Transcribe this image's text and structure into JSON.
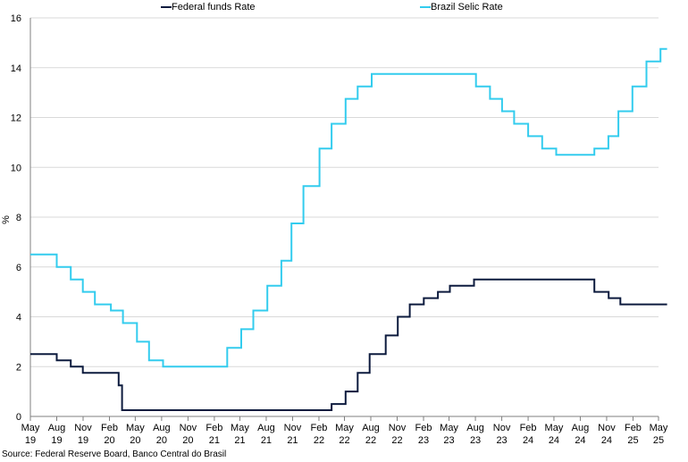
{
  "chart_data": {
    "type": "line",
    "title": "",
    "xlabel": "",
    "ylabel": "%",
    "ylim": [
      0,
      16
    ],
    "yticks": [
      0,
      2,
      4,
      6,
      8,
      10,
      12,
      14,
      16
    ],
    "xlim": [
      "2019-05",
      "2025-05"
    ],
    "xtick_labels": [
      {
        "month": "May",
        "year": "19"
      },
      {
        "month": "Aug",
        "year": "19"
      },
      {
        "month": "Nov",
        "year": "19"
      },
      {
        "month": "Feb",
        "year": "20"
      },
      {
        "month": "May",
        "year": "20"
      },
      {
        "month": "Aug",
        "year": "20"
      },
      {
        "month": "Nov",
        "year": "20"
      },
      {
        "month": "Feb",
        "year": "21"
      },
      {
        "month": "May",
        "year": "21"
      },
      {
        "month": "Aug",
        "year": "21"
      },
      {
        "month": "Nov",
        "year": "21"
      },
      {
        "month": "Feb",
        "year": "22"
      },
      {
        "month": "May",
        "year": "22"
      },
      {
        "month": "Aug",
        "year": "22"
      },
      {
        "month": "Nov",
        "year": "22"
      },
      {
        "month": "Feb",
        "year": "23"
      },
      {
        "month": "May",
        "year": "23"
      },
      {
        "month": "Aug",
        "year": "23"
      },
      {
        "month": "Nov",
        "year": "23"
      },
      {
        "month": "Feb",
        "year": "24"
      },
      {
        "month": "May",
        "year": "24"
      },
      {
        "month": "Aug",
        "year": "24"
      },
      {
        "month": "Nov",
        "year": "24"
      },
      {
        "month": "Feb",
        "year": "25"
      },
      {
        "month": "May",
        "year": "25"
      }
    ],
    "grid": true,
    "legend_position": "top",
    "series": [
      {
        "name": "Federal funds Rate",
        "color": "#0d1b3e",
        "step": true,
        "points": [
          [
            "2019-05-01",
            2.5
          ],
          [
            "2019-08-01",
            2.25
          ],
          [
            "2019-09-19",
            2.0
          ],
          [
            "2019-10-31",
            1.75
          ],
          [
            "2020-03-04",
            1.25
          ],
          [
            "2020-03-16",
            0.25
          ],
          [
            "2022-03-17",
            0.5
          ],
          [
            "2022-05-05",
            1.0
          ],
          [
            "2022-06-16",
            1.75
          ],
          [
            "2022-07-28",
            2.5
          ],
          [
            "2022-09-22",
            3.25
          ],
          [
            "2022-11-03",
            4.0
          ],
          [
            "2022-12-15",
            4.5
          ],
          [
            "2023-02-02",
            4.75
          ],
          [
            "2023-03-23",
            5.0
          ],
          [
            "2023-05-04",
            5.25
          ],
          [
            "2023-07-27",
            5.5
          ],
          [
            "2024-09-19",
            5.0
          ],
          [
            "2024-11-08",
            4.75
          ],
          [
            "2024-12-19",
            4.5
          ],
          [
            "2025-05-31",
            4.5
          ]
        ]
      },
      {
        "name": "Brazil Selic Rate",
        "color": "#33ccee",
        "step": true,
        "points": [
          [
            "2019-05-01",
            6.5
          ],
          [
            "2019-08-01",
            6.0
          ],
          [
            "2019-09-19",
            5.5
          ],
          [
            "2019-10-31",
            5.0
          ],
          [
            "2019-12-12",
            4.5
          ],
          [
            "2020-02-06",
            4.25
          ],
          [
            "2020-03-19",
            3.75
          ],
          [
            "2020-05-07",
            3.0
          ],
          [
            "2020-06-18",
            2.25
          ],
          [
            "2020-08-06",
            2.0
          ],
          [
            "2021-03-18",
            2.75
          ],
          [
            "2021-05-06",
            3.5
          ],
          [
            "2021-06-17",
            4.25
          ],
          [
            "2021-08-05",
            5.25
          ],
          [
            "2021-09-23",
            6.25
          ],
          [
            "2021-10-28",
            7.75
          ],
          [
            "2021-12-09",
            9.25
          ],
          [
            "2022-02-03",
            10.75
          ],
          [
            "2022-03-17",
            11.75
          ],
          [
            "2022-05-05",
            12.75
          ],
          [
            "2022-06-16",
            13.25
          ],
          [
            "2022-08-04",
            13.75
          ],
          [
            "2023-08-03",
            13.25
          ],
          [
            "2023-09-21",
            12.75
          ],
          [
            "2023-11-02",
            12.25
          ],
          [
            "2023-12-14",
            11.75
          ],
          [
            "2024-02-01",
            11.25
          ],
          [
            "2024-03-21",
            10.75
          ],
          [
            "2024-05-09",
            10.5
          ],
          [
            "2024-09-19",
            10.75
          ],
          [
            "2024-11-07",
            11.25
          ],
          [
            "2024-12-12",
            12.25
          ],
          [
            "2025-01-30",
            13.25
          ],
          [
            "2025-03-20",
            14.25
          ],
          [
            "2025-05-08",
            14.75
          ],
          [
            "2025-05-31",
            14.75
          ]
        ]
      }
    ]
  },
  "source": "Source: Federal Reserve Board, Banco Central do Brasil"
}
